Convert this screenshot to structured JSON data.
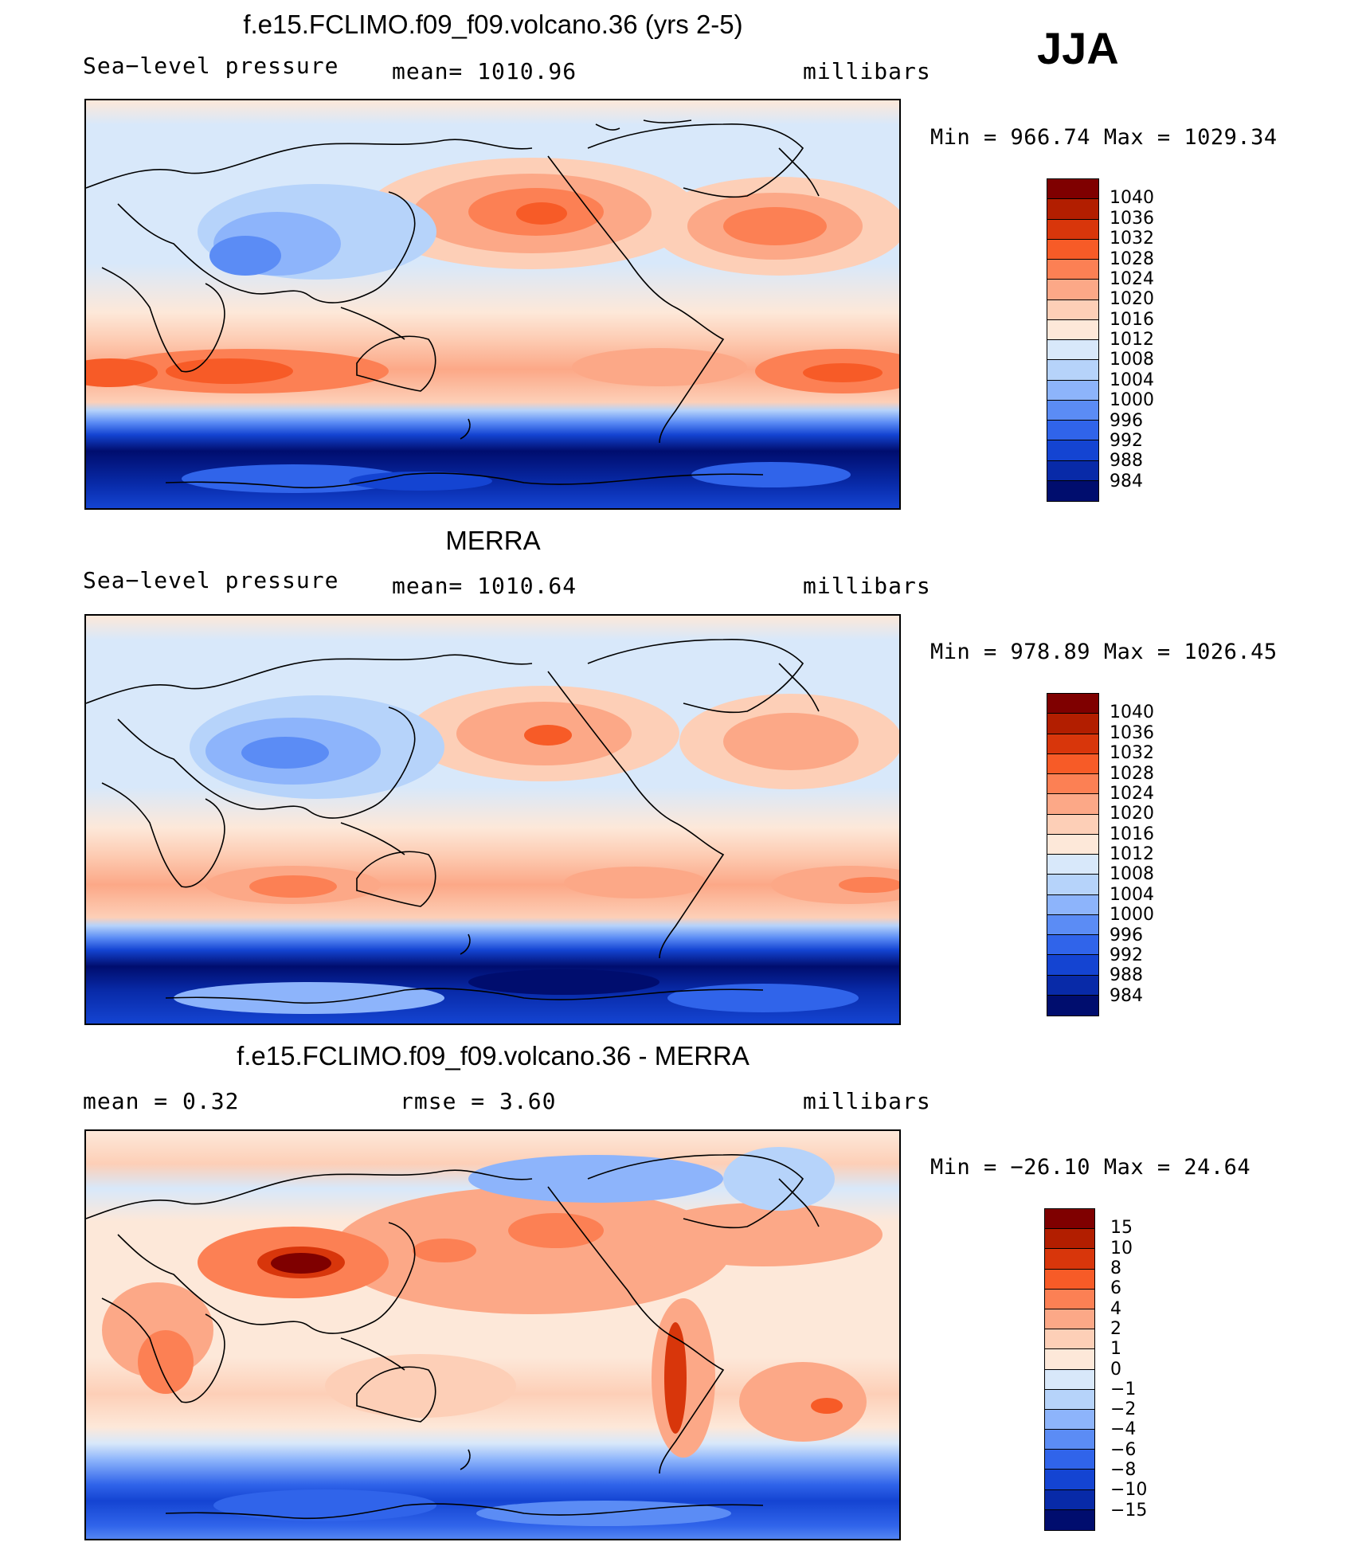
{
  "season_label": "JJA",
  "panels": [
    {
      "id": "model",
      "title": "f.e15.FCLIMO.f09_f09.volcano.36 (yrs 2-5)",
      "left_label": "Sea−level pressure",
      "center_label": "mean=  1010.96",
      "right_label": "millibars",
      "minmax": "Min  =  966.74  Max  =  1029.34",
      "colorbar": {
        "levels": [
          "1040",
          "1036",
          "1032",
          "1028",
          "1024",
          "1020",
          "1016",
          "1012",
          "1008",
          "1004",
          "1000",
          "996",
          "992",
          "988",
          "984"
        ],
        "colors": [
          "#7f0000",
          "#b21e00",
          "#d8360b",
          "#f75b27",
          "#fc8054",
          "#fca887",
          "#fdcfb7",
          "#fde8d9",
          "#d8e8fa",
          "#b6d3fa",
          "#8db4fb",
          "#5b8cf5",
          "#3064ea",
          "#1444d2",
          "#082aa8",
          "#000d6e"
        ]
      }
    },
    {
      "id": "obs",
      "title": "MERRA",
      "left_label": "Sea−level pressure",
      "center_label": "mean=  1010.64",
      "right_label": "millibars",
      "minmax": "Min  =  978.89  Max  =  1026.45",
      "colorbar": {
        "levels": [
          "1040",
          "1036",
          "1032",
          "1028",
          "1024",
          "1020",
          "1016",
          "1012",
          "1008",
          "1004",
          "1000",
          "996",
          "992",
          "988",
          "984"
        ],
        "colors": [
          "#7f0000",
          "#b21e00",
          "#d8360b",
          "#f75b27",
          "#fc8054",
          "#fca887",
          "#fdcfb7",
          "#fde8d9",
          "#d8e8fa",
          "#b6d3fa",
          "#8db4fb",
          "#5b8cf5",
          "#3064ea",
          "#1444d2",
          "#082aa8",
          "#000d6e"
        ]
      }
    },
    {
      "id": "diff",
      "title": "f.e15.FCLIMO.f09_f09.volcano.36 - MERRA",
      "left_label": "mean =     0.32",
      "center_label": "rmse =     3.60",
      "right_label": "millibars",
      "minmax": "Min  =  −26.10  Max  =    24.64",
      "colorbar": {
        "levels": [
          "15",
          "10",
          "8",
          "6",
          "4",
          "2",
          "1",
          "0",
          "−1",
          "−2",
          "−4",
          "−6",
          "−8",
          "−10",
          "−15"
        ],
        "colors": [
          "#7f0000",
          "#b21e00",
          "#d8360b",
          "#f75b27",
          "#fc8054",
          "#fca887",
          "#fdcfb7",
          "#fde8d9",
          "#d8e8fa",
          "#b6d3fa",
          "#8db4fb",
          "#5b8cf5",
          "#3064ea",
          "#1444d2",
          "#082aa8",
          "#000d6e"
        ]
      }
    }
  ]
}
